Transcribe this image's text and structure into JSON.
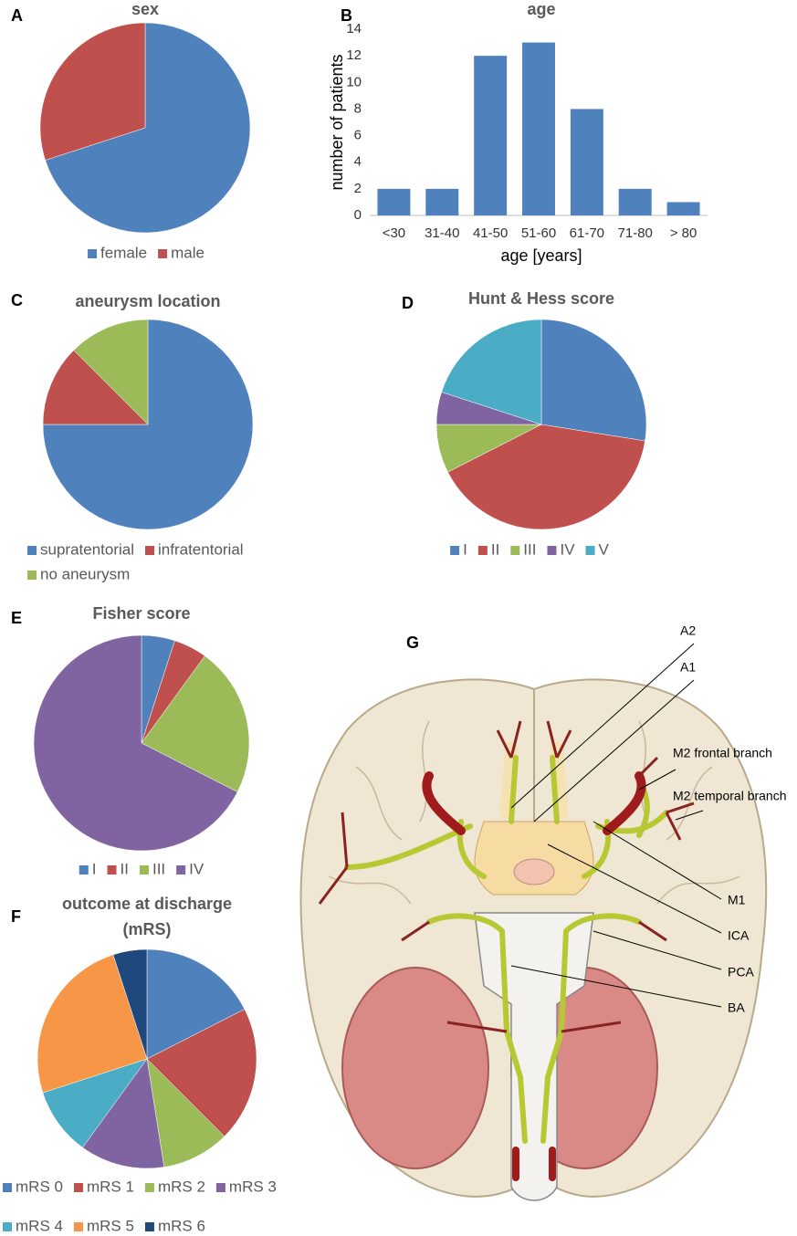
{
  "chart_data": [
    {
      "type": "pie",
      "panel": "A",
      "title": "sex",
      "categories": [
        "female",
        "male"
      ],
      "values": [
        28,
        12
      ],
      "colors": [
        "#4f81bd",
        "#c0504d"
      ]
    },
    {
      "type": "bar",
      "panel": "B",
      "title": "age",
      "categories": [
        "<30",
        "31-40",
        "41-50",
        "51-60",
        "61-70",
        "71-80",
        "> 80"
      ],
      "values": [
        2,
        2,
        12,
        13,
        8,
        2,
        1
      ],
      "color": "#4f81bd",
      "ylim": [
        0,
        14
      ],
      "yticks": [
        0,
        2,
        4,
        6,
        8,
        10,
        12,
        14
      ],
      "ylabel": "number of patients",
      "xlabel": "age [years]"
    },
    {
      "type": "pie",
      "panel": "C",
      "title": "aneurysm location",
      "categories": [
        "supratentorial",
        "infratentorial",
        "no aneurysm"
      ],
      "values": [
        30,
        5,
        5
      ],
      "colors": [
        "#4f81bd",
        "#c0504d",
        "#9bbb59"
      ]
    },
    {
      "type": "pie",
      "panel": "D",
      "title": "Hunt & Hess score",
      "categories": [
        "I",
        "II",
        "III",
        "IV",
        "V"
      ],
      "values": [
        11,
        16,
        3,
        2,
        8
      ],
      "colors": [
        "#4f81bd",
        "#c0504d",
        "#9bbb59",
        "#8064a2",
        "#4bacc6"
      ]
    },
    {
      "type": "pie",
      "panel": "E",
      "title": "Fisher score",
      "categories": [
        "I",
        "II",
        "III",
        "IV"
      ],
      "values": [
        2,
        2,
        9,
        27
      ],
      "colors": [
        "#4f81bd",
        "#c0504d",
        "#9bbb59",
        "#8064a2"
      ]
    },
    {
      "type": "pie",
      "panel": "F",
      "title": "outcome at discharge (mRS)",
      "categories": [
        "mRS 0",
        "mRS 1",
        "mRS 2",
        "mRS 3",
        "mRS 4",
        "mRS 5",
        "mRS 6"
      ],
      "values": [
        7,
        8,
        4,
        5,
        4,
        10,
        2
      ],
      "colors": [
        "#4f81bd",
        "#c0504d",
        "#9bbb59",
        "#8064a2",
        "#4bacc6",
        "#f79646",
        "#1f497d"
      ]
    }
  ],
  "diagram": {
    "panel": "G",
    "labels": [
      "A2",
      "A1",
      "M2 frontal branch",
      "M2 temporal branch",
      "M1",
      "ICA",
      "PCA",
      "BA"
    ]
  }
}
